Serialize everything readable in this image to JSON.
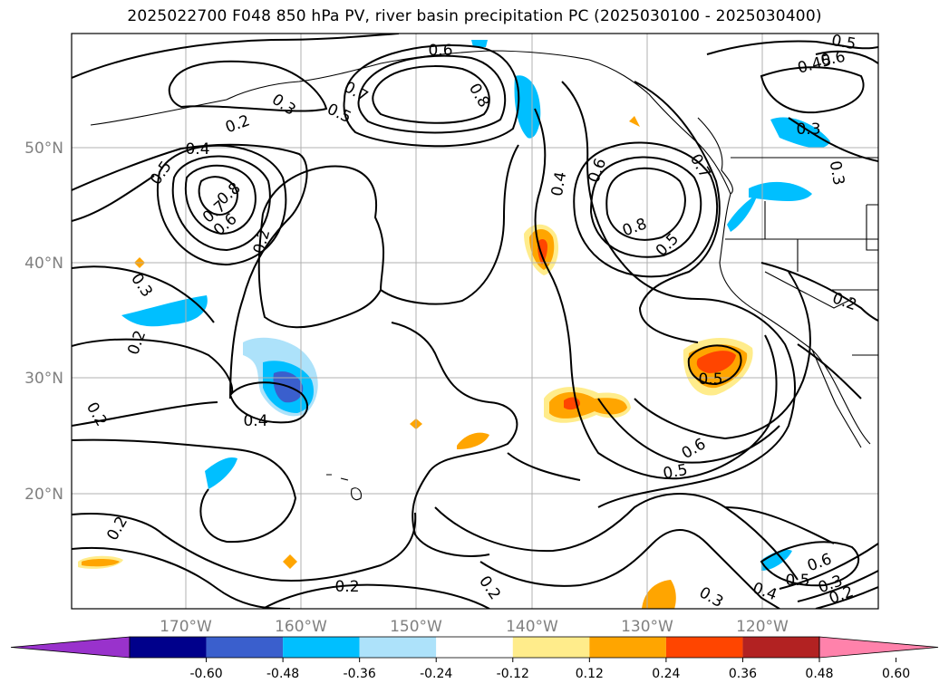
{
  "title": "2025022700 F048 850 hPa PV, river basin precipitation PC (2025030100 - 2025030400)",
  "lat_labels": [
    "50°N",
    "40°N",
    "30°N",
    "20°N"
  ],
  "lon_labels": [
    "170°W",
    "160°W",
    "150°W",
    "140°W",
    "130°W",
    "120°W"
  ],
  "contour_labels": [
    "0.6",
    "0.8",
    "0.7",
    "0.5",
    "0.3",
    "0.2",
    "0.4",
    "0.5",
    "0.8",
    "0.7",
    "0.6",
    "0.2",
    "0.3",
    "0.2",
    "0.2",
    "0.4",
    "0.2",
    "0.2",
    "0.2",
    "0.4",
    "0.6",
    "0.8",
    "0.5",
    "0.7",
    "0.5",
    "0.6",
    "0.5",
    "0.3",
    "0.3",
    "0.45",
    "0.6",
    "0.2",
    "0.6",
    "0.5",
    "0.4",
    "0.3",
    "0.2",
    "0.5",
    "0.3"
  ],
  "colorbar": {
    "ticks": [
      "-0.60",
      "-0.48",
      "-0.36",
      "-0.24",
      "-0.12",
      "0.12",
      "0.24",
      "0.36",
      "0.48",
      "0.60"
    ],
    "colors": [
      "#9932CC",
      "#00008B",
      "#3A5FCD",
      "#00BFFF",
      "#ADE2FA",
      "#FFFFFF",
      "#FFEC8B",
      "#FFA500",
      "#FF4500",
      "#B22222",
      "#FF82AB"
    ]
  }
}
